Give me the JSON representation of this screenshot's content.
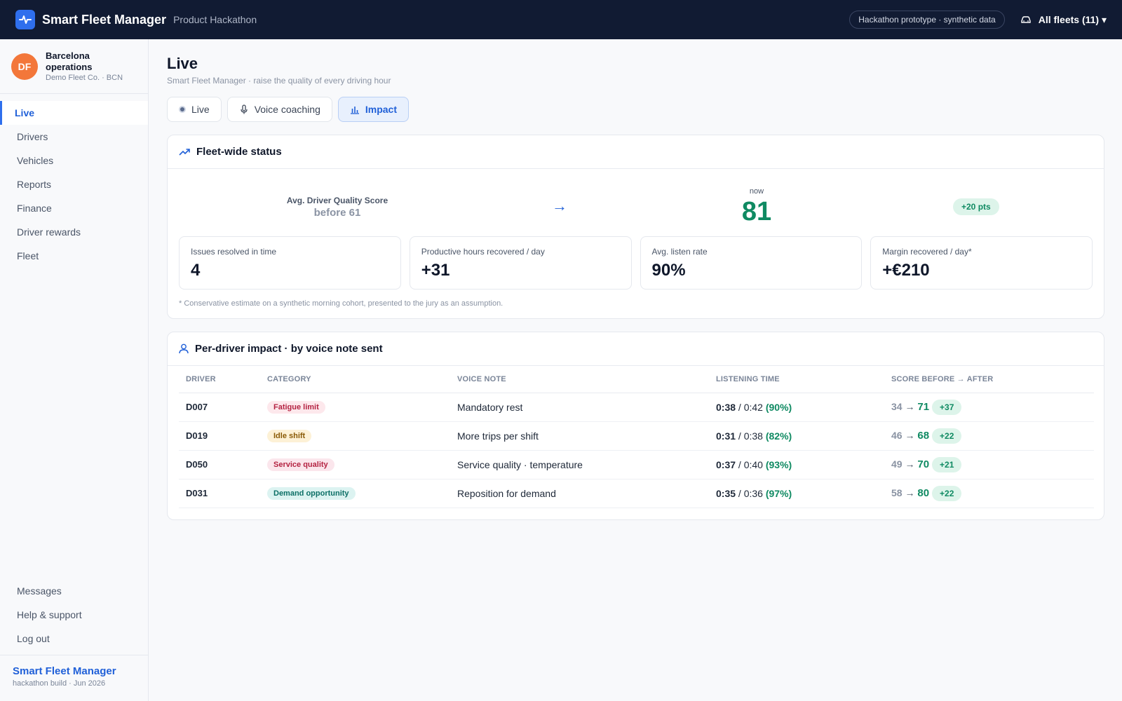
{
  "header": {
    "brand": "Smart Fleet Manager",
    "subtitle": "Product Hackathon",
    "prototype_pill": "Hackathon prototype · synthetic data",
    "fleet_selector": "All fleets (11) ▾"
  },
  "sidebar": {
    "org": {
      "initials": "DF",
      "name": "Barcelona operations",
      "sub": "Demo Fleet Co. · BCN"
    },
    "items": [
      {
        "label": "Live"
      },
      {
        "label": "Drivers"
      },
      {
        "label": "Vehicles"
      },
      {
        "label": "Reports"
      },
      {
        "label": "Finance"
      },
      {
        "label": "Driver rewards"
      },
      {
        "label": "Fleet"
      }
    ],
    "bottom_items": [
      {
        "label": "Messages"
      },
      {
        "label": "Help & support"
      },
      {
        "label": "Log out"
      }
    ],
    "footer": {
      "title": "Smart Fleet Manager",
      "sub": "hackathon build · Jun 2026"
    }
  },
  "page": {
    "title": "Live",
    "subtitle": "Smart Fleet Manager · raise the quality of every driving hour"
  },
  "tabs": [
    {
      "label": "Live"
    },
    {
      "label": "Voice coaching"
    },
    {
      "label": "Impact"
    }
  ],
  "fleet_status": {
    "title": "Fleet-wide status",
    "score_label": "Avg. Driver Quality Score",
    "before_text": "before 61",
    "arrow": "→",
    "now_label": "now",
    "now_value": "81",
    "delta": "+20 pts",
    "kpis": [
      {
        "label": "Issues resolved in time",
        "value": "4"
      },
      {
        "label": "Productive hours recovered / day",
        "value": "+31"
      },
      {
        "label": "Avg. listen rate",
        "value": "90%"
      },
      {
        "label": "Margin recovered / day*",
        "value": "+€210"
      }
    ],
    "footnote": "* Conservative estimate on a synthetic morning cohort, presented to the jury as an assumption."
  },
  "per_driver": {
    "title": "Per-driver impact · by voice note sent",
    "columns": [
      "DRIVER",
      "CATEGORY",
      "VOICE NOTE",
      "LISTENING TIME",
      "SCORE BEFORE → AFTER"
    ],
    "rows": [
      {
        "driver": "D007",
        "category": "Fatigue limit",
        "voice_note": "Mandatory rest",
        "listened": "0:38",
        "total": "/ 0:42",
        "pct": "(90%)",
        "before": "34",
        "arrow": "→",
        "after": "71",
        "delta": "+37"
      },
      {
        "driver": "D019",
        "category": "Idle shift",
        "voice_note": "More trips per shift",
        "listened": "0:31",
        "total": "/ 0:38",
        "pct": "(82%)",
        "before": "46",
        "arrow": "→",
        "after": "68",
        "delta": "+22"
      },
      {
        "driver": "D050",
        "category": "Service quality",
        "voice_note": "Service quality · temperature",
        "listened": "0:37",
        "total": "/ 0:40",
        "pct": "(93%)",
        "before": "49",
        "arrow": "→",
        "after": "70",
        "delta": "+21"
      },
      {
        "driver": "D031",
        "category": "Demand opportunity",
        "voice_note": "Reposition for demand",
        "listened": "0:35",
        "total": "/ 0:36",
        "pct": "(97%)",
        "before": "58",
        "arrow": "→",
        "after": "80",
        "delta": "+22"
      }
    ]
  },
  "colors": {
    "topbar": "#111b33",
    "accent": "#2f6fed",
    "positive": "#0f8a62",
    "avatar": "#f3773a"
  },
  "icons": {
    "logo": "pulse-icon",
    "fleet": "car-icon",
    "voice_tab": "microphone-icon",
    "impact_tab": "bar-chart-icon",
    "status": "trending-up-icon",
    "per_driver": "user-icon"
  }
}
